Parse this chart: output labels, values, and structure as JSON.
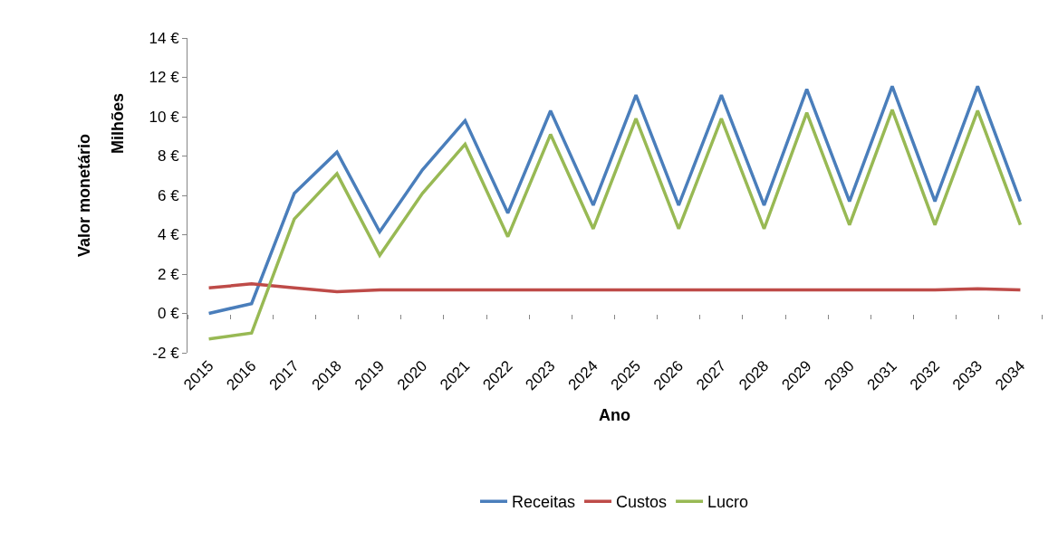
{
  "chart_data": {
    "type": "line",
    "xlabel": "Ano",
    "ylabel": "Valor monetário",
    "annotations": [
      "Milhões"
    ],
    "categories": [
      "2015",
      "2016",
      "2017",
      "2018",
      "2019",
      "2020",
      "2021",
      "2022",
      "2023",
      "2024",
      "2025",
      "2026",
      "2027",
      "2028",
      "2029",
      "2030",
      "2031",
      "2032",
      "2033",
      "2034"
    ],
    "series": [
      {
        "name": "Receitas",
        "color": "#4a7ebb",
        "values": [
          0.0,
          0.5,
          6.1,
          8.2,
          4.15,
          7.3,
          9.8,
          5.1,
          10.3,
          5.5,
          11.1,
          5.5,
          11.1,
          5.5,
          11.4,
          5.7,
          11.55,
          5.7,
          11.55,
          5.7
        ]
      },
      {
        "name": "Custos",
        "color": "#be4b48",
        "values": [
          1.3,
          1.5,
          1.3,
          1.1,
          1.2,
          1.2,
          1.2,
          1.2,
          1.2,
          1.2,
          1.2,
          1.2,
          1.2,
          1.2,
          1.2,
          1.2,
          1.2,
          1.2,
          1.25,
          1.2
        ]
      },
      {
        "name": "Lucro",
        "color": "#98b954",
        "values": [
          -1.3,
          -1.0,
          4.8,
          7.1,
          2.95,
          6.1,
          8.6,
          3.9,
          9.1,
          4.3,
          9.9,
          4.3,
          9.9,
          4.3,
          10.2,
          4.5,
          10.35,
          4.5,
          10.3,
          4.5
        ]
      }
    ],
    "ylim": [
      -2,
      14
    ],
    "yticks": [
      {
        "value": -2,
        "label": "-2 €"
      },
      {
        "value": 0,
        "label": "0 €"
      },
      {
        "value": 2,
        "label": "2 €"
      },
      {
        "value": 4,
        "label": "4 €"
      },
      {
        "value": 6,
        "label": "6 €"
      },
      {
        "value": 8,
        "label": "8 €"
      },
      {
        "value": 10,
        "label": "10 €"
      },
      {
        "value": 12,
        "label": "12 €"
      },
      {
        "value": 14,
        "label": "14 €"
      }
    ],
    "legend": "bottom",
    "marker": "none",
    "line_style": "solid"
  }
}
